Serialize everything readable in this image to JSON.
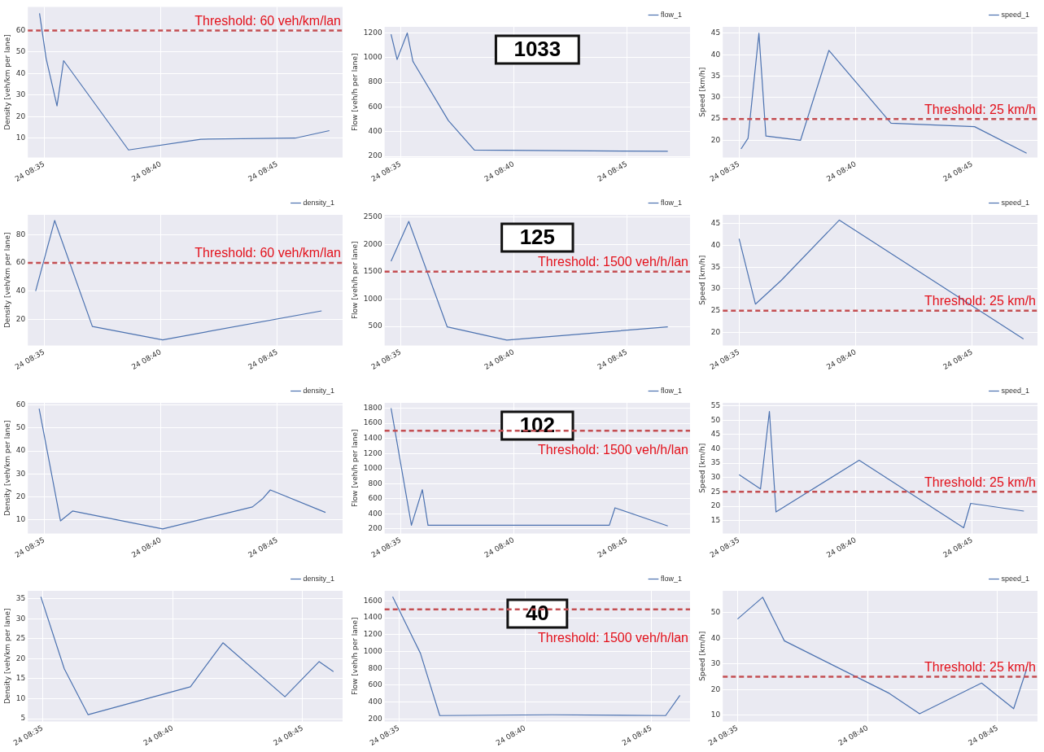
{
  "chart_data": [
    {
      "type": "line",
      "ylabel": "Density [veh/km per lane]",
      "x": [
        "--01-24T08:34:48",
        "--01-24T08:35:05",
        "--01-24T08:35:33",
        "--01-24T08:35:50",
        "--01-24T08:38:37",
        "--01-24T08:41:43",
        "--01-24T08:45:46",
        "--01-24T08:47:14"
      ],
      "series": [
        {
          "color": "#4c72b0",
          "values": [
            68,
            47,
            25,
            46,
            4.5,
            9.5,
            10,
            13.5
          ]
        }
      ],
      "xlim": [
        "--01-24T08:34:18",
        "--01-24T08:47:48"
      ],
      "xticks": [
        {
          "value": "--01-24T08:35",
          "label": "24 08:35"
        },
        {
          "value": "--01-24T08:40",
          "label": "24 08:40"
        },
        {
          "value": "--01-24T08:45",
          "label": "24 08:45"
        }
      ],
      "ylim": [
        1,
        71
      ],
      "yticks": [
        10,
        20,
        30,
        40,
        50,
        60
      ],
      "grid": true,
      "marker": "none",
      "line_style": "solid",
      "ref_lines": [
        {
          "axis": "y",
          "value": 60,
          "label": "Threshold: 60 veh/km/lan",
          "color": "#c44e52",
          "line_style": "dashed"
        }
      ]
    },
    {
      "type": "line",
      "ylabel": "Flow [veh/h per lane]",
      "x": [
        "--01-24T08:34:35",
        "--01-24T08:34:51",
        "--01-24T08:35:18",
        "--01-24T08:35:33",
        "--01-24T08:37:07",
        "--01-24T08:38:16",
        "--01-24T08:46:49"
      ],
      "series": [
        {
          "name": "flow_1",
          "color": "#4c72b0",
          "values": [
            1190,
            985,
            1200,
            970,
            490,
            250,
            240
          ]
        }
      ],
      "xlim": [
        "--01-24T08:34:18",
        "--01-24T08:47:48"
      ],
      "xticks": [
        {
          "value": "--01-24T08:35",
          "label": "24 08:35"
        },
        {
          "value": "--01-24T08:40",
          "label": "24 08:40"
        },
        {
          "value": "--01-24T08:45",
          "label": "24 08:45"
        }
      ],
      "ylim": [
        190,
        1250
      ],
      "yticks": [
        200,
        400,
        600,
        800,
        1000,
        1200
      ],
      "grid": true,
      "marker": "none",
      "line_style": "solid",
      "legend": "top right",
      "annotations": [
        "1033"
      ]
    },
    {
      "type": "line",
      "ylabel": "Speed [km/h]",
      "x": [
        "--01-24T08:35:05",
        "--01-24T08:35:23",
        "--01-24T08:35:51",
        "--01-24T08:36:09",
        "--01-24T08:37:38",
        "--01-24T08:38:51",
        "--01-24T08:41:31",
        "--01-24T08:45:06",
        "--01-24T08:47:20"
      ],
      "series": [
        {
          "name": "speed_1",
          "color": "#4c72b0",
          "values": [
            18,
            20.5,
            45,
            21,
            20,
            41,
            24,
            23.2,
            17
          ]
        }
      ],
      "xlim": [
        "--01-24T08:34:18",
        "--01-24T08:47:48"
      ],
      "xticks": [
        {
          "value": "--01-24T08:35",
          "label": "24 08:35"
        },
        {
          "value": "--01-24T08:40",
          "label": "24 08:40"
        },
        {
          "value": "--01-24T08:45",
          "label": "24 08:45"
        }
      ],
      "ylim": [
        16,
        46.5
      ],
      "yticks": [
        20,
        25,
        30,
        35,
        40,
        45
      ],
      "grid": true,
      "marker": "none",
      "line_style": "solid",
      "legend": "top right",
      "ref_lines": [
        {
          "axis": "y",
          "value": 25,
          "label": "Threshold: 25 km/h",
          "color": "#c44e52",
          "line_style": "dashed"
        }
      ]
    },
    {
      "type": "line",
      "ylabel": "Density [veh/km per lane]",
      "x": [
        "--01-24T08:34:38",
        "--01-24T08:35:27",
        "--01-24T08:37:04",
        "--01-24T08:40:05",
        "--01-24T08:46:54"
      ],
      "series": [
        {
          "name": "density_1",
          "color": "#4c72b0",
          "values": [
            40,
            90,
            15,
            5.5,
            26
          ]
        }
      ],
      "xlim": [
        "--01-24T08:34:18",
        "--01-24T08:47:48"
      ],
      "xticks": [
        {
          "value": "--01-24T08:35",
          "label": "24 08:35"
        },
        {
          "value": "--01-24T08:40",
          "label": "24 08:40"
        },
        {
          "value": "--01-24T08:45",
          "label": "24 08:45"
        }
      ],
      "ylim": [
        1.5,
        94
      ],
      "yticks": [
        20,
        40,
        60,
        80
      ],
      "grid": true,
      "marker": "none",
      "line_style": "solid",
      "legend": "top right",
      "ref_lines": [
        {
          "axis": "y",
          "value": 60,
          "label": "Threshold: 60 veh/km/lan",
          "color": "#c44e52",
          "line_style": "dashed"
        }
      ]
    },
    {
      "type": "line",
      "ylabel": "Flow [veh/h per lane]",
      "x": [
        "--01-24T08:34:35",
        "--01-24T08:35:22",
        "--01-24T08:37:04",
        "--01-24T08:39:42",
        "--01-24T08:46:49"
      ],
      "series": [
        {
          "name": "flow_1",
          "color": "#4c72b0",
          "values": [
            1690,
            2420,
            490,
            250,
            490
          ]
        }
      ],
      "xlim": [
        "--01-24T08:34:18",
        "--01-24T08:47:48"
      ],
      "xticks": [
        {
          "value": "--01-24T08:35",
          "label": "24 08:35"
        },
        {
          "value": "--01-24T08:40",
          "label": "24 08:40"
        },
        {
          "value": "--01-24T08:45",
          "label": "24 08:45"
        }
      ],
      "ylim": [
        150,
        2540
      ],
      "yticks": [
        500,
        1000,
        1500,
        2000,
        2500
      ],
      "grid": true,
      "marker": "none",
      "line_style": "solid",
      "legend": "top right",
      "ref_lines": [
        {
          "axis": "y",
          "value": 1500,
          "label": "Threshold: 1500 veh/h/lan",
          "color": "#c44e52",
          "line_style": "dashed"
        }
      ],
      "annotations": [
        "125"
      ]
    },
    {
      "type": "line",
      "ylabel": "Speed [km/h]",
      "x": [
        "--01-24T08:35:00",
        "--01-24T08:35:42",
        "--01-24T08:36:49",
        "--01-24T08:39:18",
        "--01-24T08:47:12"
      ],
      "series": [
        {
          "name": "speed_1",
          "color": "#4c72b0",
          "values": [
            41.5,
            26.5,
            32,
            45.8,
            18.5
          ]
        }
      ],
      "xlim": [
        "--01-24T08:34:18",
        "--01-24T08:47:48"
      ],
      "xticks": [
        {
          "value": "--01-24T08:35",
          "label": "24 08:35"
        },
        {
          "value": "--01-24T08:40",
          "label": "24 08:40"
        },
        {
          "value": "--01-24T08:45",
          "label": "24 08:45"
        }
      ],
      "ylim": [
        17,
        47
      ],
      "yticks": [
        20,
        25,
        30,
        35,
        40,
        45
      ],
      "grid": true,
      "marker": "none",
      "line_style": "solid",
      "legend": "top right",
      "ref_lines": [
        {
          "axis": "y",
          "value": 25,
          "label": "Threshold: 25 km/h",
          "color": "#c44e52",
          "line_style": "dashed"
        }
      ]
    },
    {
      "type": "line",
      "ylabel": "Density [veh/km per lane]",
      "x": [
        "--01-24T08:34:47",
        "--01-24T08:35:42",
        "--01-24T08:36:13",
        "--01-24T08:40:05",
        "--01-24T08:43:56",
        "--01-24T08:44:23",
        "--01-24T08:44:42",
        "--01-24T08:47:04"
      ],
      "series": [
        {
          "name": "density_1",
          "color": "#4c72b0",
          "values": [
            58.5,
            9.5,
            13.8,
            6,
            15.6,
            19.3,
            23,
            13.2
          ]
        }
      ],
      "xlim": [
        "--01-24T08:34:18",
        "--01-24T08:47:48"
      ],
      "xticks": [
        {
          "value": "--01-24T08:35",
          "label": "24 08:35"
        },
        {
          "value": "--01-24T08:40",
          "label": "24 08:40"
        },
        {
          "value": "--01-24T08:45",
          "label": "24 08:45"
        }
      ],
      "ylim": [
        4,
        61
      ],
      "yticks": [
        10,
        20,
        30,
        40,
        50,
        60
      ],
      "grid": true,
      "marker": "none",
      "line_style": "solid",
      "legend": "top right"
    },
    {
      "type": "line",
      "ylabel": "Flow [veh/h per lane]",
      "x": [
        "--01-24T08:34:35",
        "--01-24T08:35:29",
        "--01-24T08:35:58",
        "--01-24T08:36:13",
        "--01-24T08:44:14",
        "--01-24T08:44:29",
        "--01-24T08:46:49"
      ],
      "series": [
        {
          "name": "flow_1",
          "color": "#4c72b0",
          "values": [
            1800,
            250,
            720,
            250,
            250,
            480,
            240
          ]
        }
      ],
      "xlim": [
        "--01-24T08:34:18",
        "--01-24T08:47:48"
      ],
      "xticks": [
        {
          "value": "--01-24T08:35",
          "label": "24 08:35"
        },
        {
          "value": "--01-24T08:40",
          "label": "24 08:40"
        },
        {
          "value": "--01-24T08:45",
          "label": "24 08:45"
        }
      ],
      "ylim": [
        140,
        1870
      ],
      "yticks": [
        200,
        400,
        600,
        800,
        1000,
        1200,
        1400,
        1600,
        1800
      ],
      "grid": true,
      "marker": "none",
      "line_style": "solid",
      "legend": "top right",
      "ref_lines": [
        {
          "axis": "y",
          "value": 1500,
          "label": "Threshold: 1500 veh/h/lan",
          "color": "#c44e52",
          "line_style": "dashed"
        }
      ],
      "annotations": [
        "102"
      ]
    },
    {
      "type": "line",
      "ylabel": "Speed [km/h]",
      "x": [
        "--01-24T08:35:00",
        "--01-24T08:35:55",
        "--01-24T08:36:18",
        "--01-24T08:36:35",
        "--01-24T08:40:09",
        "--01-24T08:44:38",
        "--01-24T08:44:56",
        "--01-24T08:47:13"
      ],
      "series": [
        {
          "name": "speed_1",
          "color": "#4c72b0",
          "values": [
            31,
            26,
            53,
            18,
            36,
            12.5,
            21,
            18.3
          ]
        }
      ],
      "xlim": [
        "--01-24T08:34:18",
        "--01-24T08:47:48"
      ],
      "xticks": [
        {
          "value": "--01-24T08:35",
          "label": "24 08:35"
        },
        {
          "value": "--01-24T08:40",
          "label": "24 08:40"
        },
        {
          "value": "--01-24T08:45",
          "label": "24 08:45"
        }
      ],
      "ylim": [
        10.5,
        56
      ],
      "yticks": [
        15,
        20,
        25,
        30,
        35,
        40,
        45,
        50,
        55
      ],
      "grid": true,
      "marker": "none",
      "line_style": "solid",
      "legend": "top right",
      "ref_lines": [
        {
          "axis": "y",
          "value": 25,
          "label": "Threshold: 25 km/h",
          "color": "#c44e52",
          "line_style": "dashed"
        }
      ]
    },
    {
      "type": "line",
      "ylabel": "Density [veh/km per lane]",
      "x": [
        "--01-24T08:34:56",
        "--01-24T08:35:50",
        "--01-24T08:36:45",
        "--01-24T08:40:41",
        "--01-24T08:41:56",
        "--01-24T08:44:19",
        "--01-24T08:45:38",
        "--01-24T08:46:11"
      ],
      "series": [
        {
          "name": "density_1",
          "color": "#4c72b0",
          "values": [
            35.5,
            17.5,
            6,
            13,
            24,
            10.5,
            19.3,
            16.8
          ]
        }
      ],
      "xlim": [
        "--01-24T08:34:26",
        "--01-24T08:46:32"
      ],
      "xticks": [
        {
          "value": "--01-24T08:35",
          "label": "24 08:35"
        },
        {
          "value": "--01-24T08:40",
          "label": "24 08:40"
        },
        {
          "value": "--01-24T08:45",
          "label": "24 08:45"
        }
      ],
      "ylim": [
        4.3,
        37
      ],
      "yticks": [
        5,
        10,
        15,
        20,
        25,
        30,
        35
      ],
      "grid": true,
      "marker": "none",
      "line_style": "solid",
      "legend": "top right"
    },
    {
      "type": "line",
      "ylabel": "Flow [veh/h per lane]",
      "x": [
        "--01-24T08:34:45",
        "--01-24T08:35:51",
        "--01-24T08:36:37",
        "--01-24T08:41:04",
        "--01-24T08:45:34",
        "--01-24T08:46:08"
      ],
      "series": [
        {
          "name": "flow_1",
          "color": "#4c72b0",
          "values": [
            1650,
            980,
            240,
            250,
            240,
            480
          ]
        }
      ],
      "xlim": [
        "--01-24T08:34:26",
        "--01-24T08:46:32"
      ],
      "xticks": [
        {
          "value": "--01-24T08:35",
          "label": "24 08:35"
        },
        {
          "value": "--01-24T08:40",
          "label": "24 08:40"
        },
        {
          "value": "--01-24T08:45",
          "label": "24 08:45"
        }
      ],
      "ylim": [
        170,
        1720
      ],
      "yticks": [
        200,
        400,
        600,
        800,
        1000,
        1200,
        1400,
        1600
      ],
      "grid": true,
      "marker": "none",
      "line_style": "solid",
      "legend": "top right",
      "ref_lines": [
        {
          "axis": "y",
          "value": 1500,
          "label": "Threshold: 1500 veh/h/lan",
          "color": "#c44e52",
          "line_style": "dashed"
        }
      ],
      "annotations": [
        "40"
      ]
    },
    {
      "type": "line",
      "ylabel": "Speed [km/h]",
      "x": [
        "--01-24T08:35:00",
        "--01-24T08:35:58",
        "--01-24T08:36:48",
        "--01-24T08:40:50",
        "--01-24T08:42:00",
        "--01-24T08:44:23",
        "--01-24T08:45:37",
        "--01-24T08:46:07"
      ],
      "series": [
        {
          "name": "speed_1",
          "color": "#4c72b0",
          "values": [
            47.5,
            56,
            39,
            18.5,
            10.5,
            22.5,
            12.5,
            28
          ]
        }
      ],
      "xlim": [
        "--01-24T08:34:26",
        "--01-24T08:46:32"
      ],
      "xticks": [
        {
          "value": "--01-24T08:35",
          "label": "24 08:35"
        },
        {
          "value": "--01-24T08:40",
          "label": "24 08:40"
        },
        {
          "value": "--01-24T08:45",
          "label": "24 08:45"
        }
      ],
      "ylim": [
        7.5,
        58.5
      ],
      "yticks": [
        10,
        20,
        30,
        40,
        50
      ],
      "grid": true,
      "marker": "none",
      "line_style": "solid",
      "legend": "top right",
      "ref_lines": [
        {
          "axis": "y",
          "value": 25,
          "label": "Threshold: 25 km/h",
          "color": "#c44e52",
          "line_style": "dashed"
        }
      ]
    }
  ]
}
